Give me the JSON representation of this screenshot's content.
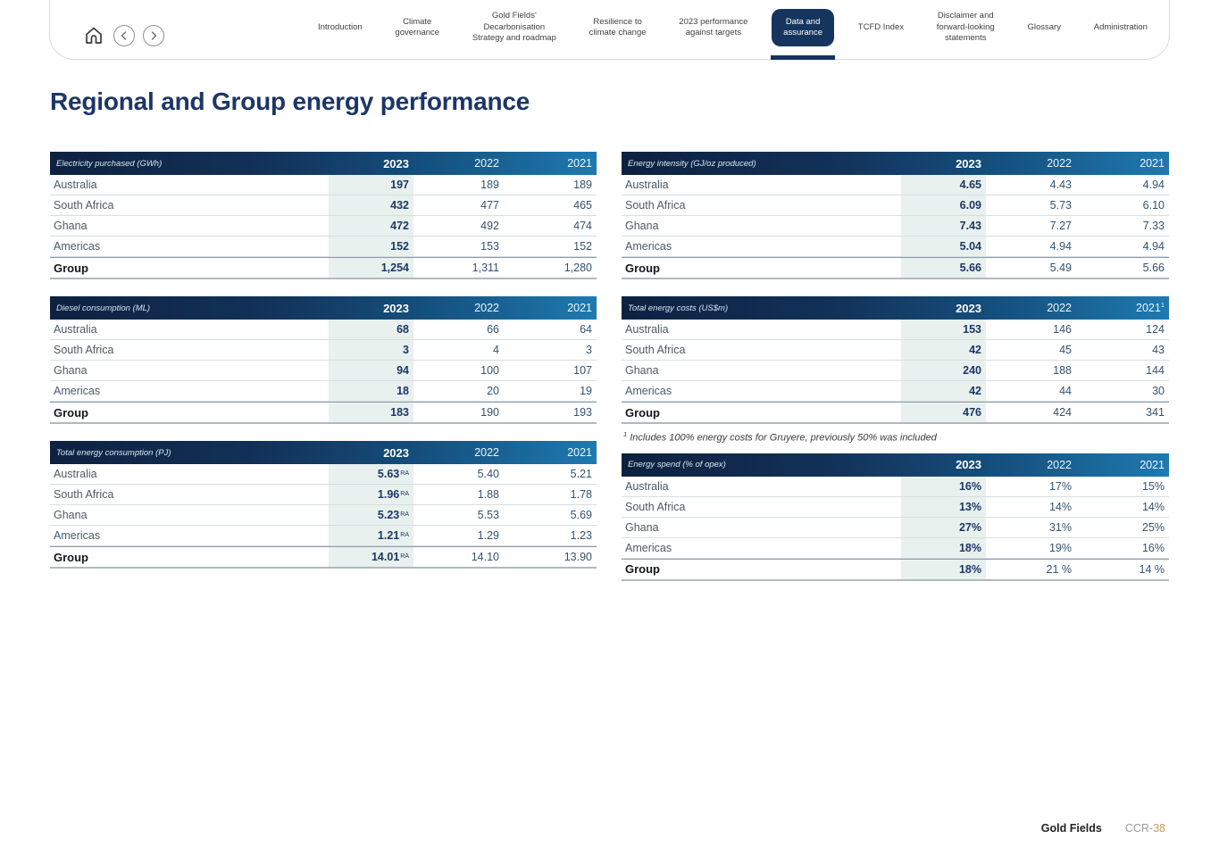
{
  "nav": {
    "icons": [
      "home-icon",
      "chevron-left-icon",
      "chevron-right-icon"
    ],
    "tabs": [
      {
        "label": "Introduction",
        "active": false
      },
      {
        "label": "Climate\ngovernance",
        "active": false
      },
      {
        "label": "Gold Fields'\nDecarbonisation\nStrategy and roadmap",
        "active": false
      },
      {
        "label": "Resilience to\nclimate change",
        "active": false
      },
      {
        "label": "2023 performance\nagainst targets",
        "active": false
      },
      {
        "label": "Data and\nassurance",
        "active": true
      },
      {
        "label": "TCFD Index",
        "active": false
      },
      {
        "label": "Disclaimer and\nforward-looking\nstatements",
        "active": false
      },
      {
        "label": "Glossary",
        "active": false
      },
      {
        "label": "Administration",
        "active": false
      }
    ],
    "accent_color": "#16355e"
  },
  "page": {
    "title": "Regional and Group energy performance"
  },
  "tables": [
    {
      "title": "Electricity purchased (GWh)",
      "column": "left",
      "years": [
        "2023",
        "2022",
        "2021"
      ],
      "year_sups": [
        "",
        "",
        ""
      ],
      "rows": [
        {
          "label": "Australia",
          "values": [
            "197",
            "189",
            "189"
          ]
        },
        {
          "label": "South Africa",
          "values": [
            "432",
            "477",
            "465"
          ]
        },
        {
          "label": "Ghana",
          "values": [
            "472",
            "492",
            "474"
          ]
        },
        {
          "label": "Americas",
          "values": [
            "152",
            "153",
            "152"
          ]
        },
        {
          "label": "Group",
          "values": [
            "1,254",
            "1,311",
            "1,280"
          ],
          "total": true
        }
      ]
    },
    {
      "title": "Energy intensity (GJ/oz produced)",
      "column": "right",
      "years": [
        "2023",
        "2022",
        "2021"
      ],
      "year_sups": [
        "",
        "",
        ""
      ],
      "rows": [
        {
          "label": "Australia",
          "values": [
            "4.65",
            "4.43",
            "4.94"
          ]
        },
        {
          "label": "South Africa",
          "values": [
            "6.09",
            "5.73",
            "6.10"
          ]
        },
        {
          "label": "Ghana",
          "values": [
            "7.43",
            "7.27",
            "7.33"
          ]
        },
        {
          "label": "Americas",
          "values": [
            "5.04",
            "4.94",
            "4.94"
          ]
        },
        {
          "label": "Group",
          "values": [
            "5.66",
            "5.49",
            "5.66"
          ],
          "total": true
        }
      ]
    },
    {
      "title": "Diesel consumption (ML)",
      "column": "left",
      "years": [
        "2023",
        "2022",
        "2021"
      ],
      "year_sups": [
        "",
        "",
        ""
      ],
      "rows": [
        {
          "label": "Australia",
          "values": [
            "68",
            "66",
            "64"
          ]
        },
        {
          "label": "South Africa",
          "values": [
            "3",
            "4",
            "3"
          ]
        },
        {
          "label": "Ghana",
          "values": [
            "94",
            "100",
            "107"
          ]
        },
        {
          "label": "Americas",
          "values": [
            "18",
            "20",
            "19"
          ]
        },
        {
          "label": "Group",
          "values": [
            "183",
            "190",
            "193"
          ],
          "total": true
        }
      ]
    },
    {
      "title": "Total energy costs (US$m)",
      "column": "right",
      "years": [
        "2023",
        "2022",
        "2021"
      ],
      "year_sups": [
        "",
        "",
        "1"
      ],
      "rows": [
        {
          "label": "Australia",
          "values": [
            "153",
            "146",
            "124"
          ]
        },
        {
          "label": "South Africa",
          "values": [
            "42",
            "45",
            "43"
          ]
        },
        {
          "label": "Ghana",
          "values": [
            "240",
            "188",
            "144"
          ]
        },
        {
          "label": "Americas",
          "values": [
            "42",
            "44",
            "30"
          ]
        },
        {
          "label": "Group",
          "values": [
            "476",
            "424",
            "341"
          ],
          "total": true
        }
      ],
      "footnote_sup": "1",
      "footnote": "Includes 100% energy costs for Gruyere, previously 50% was included"
    },
    {
      "title": "Total energy consumption (PJ)",
      "column": "left",
      "years": [
        "2023",
        "2022",
        "2021"
      ],
      "year_sups": [
        "",
        "",
        ""
      ],
      "rows": [
        {
          "label": "Australia",
          "values": [
            "5.63",
            "5.40",
            "5.21"
          ],
          "sups": [
            "RA",
            "",
            ""
          ]
        },
        {
          "label": "South Africa",
          "values": [
            "1.96",
            "1.88",
            "1.78"
          ],
          "sups": [
            "RA",
            "",
            ""
          ]
        },
        {
          "label": "Ghana",
          "values": [
            "5.23",
            "5.53",
            "5.69"
          ],
          "sups": [
            "RA",
            "",
            ""
          ]
        },
        {
          "label": "Americas",
          "values": [
            "1.21",
            "1.29",
            "1.23"
          ],
          "sups": [
            "RA",
            "",
            ""
          ]
        },
        {
          "label": "Group",
          "values": [
            "14.01",
            "14.10",
            "13.90"
          ],
          "sups": [
            "RA",
            "",
            ""
          ],
          "total": true
        }
      ]
    },
    {
      "title": "Energy spend (% of opex)",
      "column": "right",
      "years": [
        "2023",
        "2022",
        "2021"
      ],
      "year_sups": [
        "",
        "",
        ""
      ],
      "rows": [
        {
          "label": "Australia",
          "values": [
            "16%",
            "17%",
            "15%"
          ]
        },
        {
          "label": "South Africa",
          "values": [
            "13%",
            "14%",
            "14%"
          ]
        },
        {
          "label": "Ghana",
          "values": [
            "27%",
            "31%",
            "25%"
          ]
        },
        {
          "label": "Americas",
          "values": [
            "18%",
            "19%",
            "16%"
          ]
        },
        {
          "label": "Group",
          "values": [
            "18%",
            "21 %",
            "14 %"
          ],
          "total": true
        }
      ]
    }
  ],
  "footer": {
    "brand": "Gold Fields",
    "page_prefix": "CCR-",
    "page_number": "38"
  }
}
